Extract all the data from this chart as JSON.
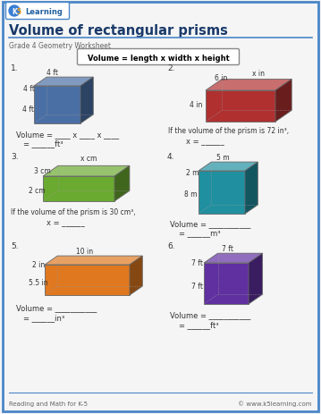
{
  "title": "Volume of rectangular prisms",
  "subtitle": "Grade 4 Geometry Worksheet",
  "formula": "Volume = length x width x height",
  "bg_color": "#f5f5f5",
  "border_color": "#4a86c8",
  "problems": [
    {
      "num": "1.",
      "dim_top": "4 ft",
      "dim_left": "4 ft",
      "dim_front": "4 ft",
      "color": "#4a6fa5",
      "line1": "Volume = ____ x ____ x ____",
      "line2": "= ______ft³"
    },
    {
      "num": "2.",
      "dim_top": "x in",
      "dim_left": "6 in",
      "dim_front": "4 in",
      "color": "#b03030",
      "line1": "If the volume of the prism is 72 in³,",
      "line2": "x = ______"
    },
    {
      "num": "3.",
      "dim_top": "x cm",
      "dim_left": "3 cm",
      "dim_front": "2 cm",
      "color": "#6aaa30",
      "line1": "If the volume of the prism is 30 cm³,",
      "line2": "x = ______"
    },
    {
      "num": "4.",
      "dim_top": "5 m",
      "dim_left": "2 m",
      "dim_front": "8 m",
      "color": "#2090a0",
      "line1": "Volume = ___________",
      "line2": "= ______m³"
    },
    {
      "num": "5.",
      "dim_top": "10 in",
      "dim_left": "2 in",
      "dim_front": "5.5 in",
      "color": "#e07820",
      "line1": "Volume = ___________",
      "line2": "= ______in³"
    },
    {
      "num": "6.",
      "dim_top": "7 ft",
      "dim_left": "7 ft",
      "dim_front": "7 ft",
      "color": "#6030a0",
      "line1": "Volume = ___________",
      "line2": "= ______ft³"
    }
  ],
  "footer_left": "Reading and Math for K-5",
  "footer_right": "© www.k5learning.com"
}
